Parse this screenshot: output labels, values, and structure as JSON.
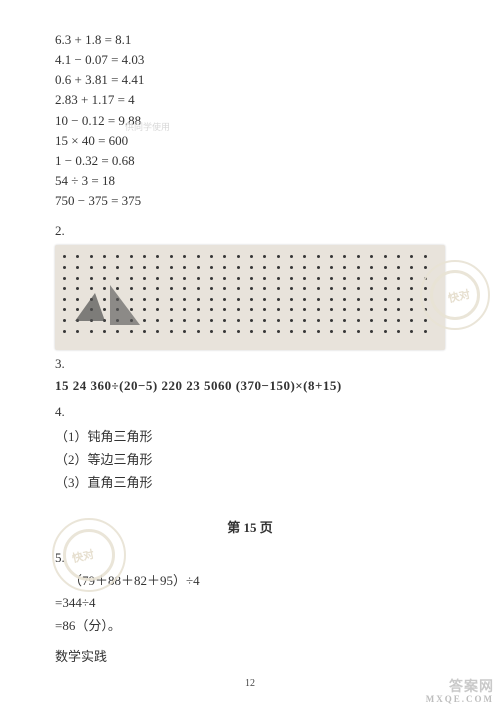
{
  "equations": [
    "6.3 + 1.8 = 8.1",
    "4.1 − 0.07 = 4.03",
    "0.6 + 3.81 = 4.41",
    "2.83 + 1.17 = 4",
    "10 − 0.12 = 9.88",
    "15 × 40 = 600",
    "1 − 0.32 = 0.68",
    "54 ÷ 3 = 18",
    "750 − 375 = 375"
  ],
  "sec2": "2.",
  "sec3": "3.",
  "boldline": "15   24   360÷(20−5)    220   23   5060    (370−150)×(8+15)",
  "sec4": "4.",
  "subitems": [
    "（1）钝角三角形",
    "（2）等边三角形",
    "（3）直角三角形"
  ],
  "page_heading": "第 15 页",
  "sec5": "5.",
  "calc": {
    "line1": "（79＋88＋82＋95）÷4",
    "line2": "=344÷4",
    "line3": "=86（分）。"
  },
  "practice": "数学实践",
  "page_num": "12",
  "watermark_kd": "快对",
  "corner": {
    "main": "答案网",
    "url": "MXQE.COM"
  },
  "faint": "供同学使用"
}
